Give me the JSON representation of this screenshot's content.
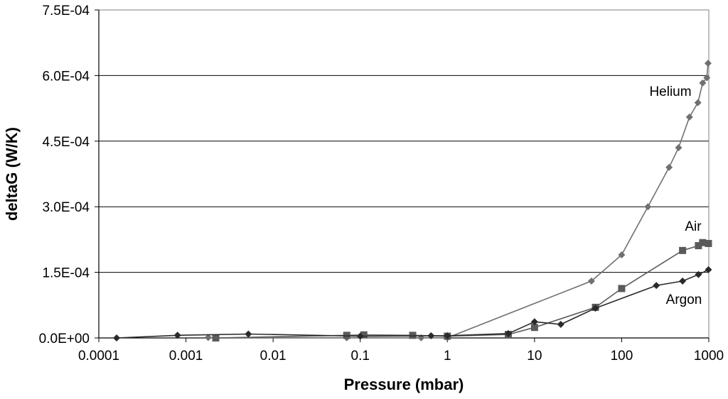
{
  "chart_data": {
    "type": "line",
    "title": "",
    "xlabel": "Pressure (mbar)",
    "ylabel": "deltaG (W/K)",
    "x_scale": "log",
    "xlim": [
      0.0001,
      1000
    ],
    "ylim": [
      0,
      0.00075
    ],
    "x_ticks": [
      {
        "value": 0.0001,
        "label": "0.0001"
      },
      {
        "value": 0.001,
        "label": "0.001"
      },
      {
        "value": 0.01,
        "label": "0.01"
      },
      {
        "value": 0.1,
        "label": "0.1"
      },
      {
        "value": 1,
        "label": "1"
      },
      {
        "value": 10,
        "label": "10"
      },
      {
        "value": 100,
        "label": "100"
      },
      {
        "value": 1000,
        "label": "1000"
      }
    ],
    "y_ticks": [
      {
        "value": 0,
        "label": "0.0E+00"
      },
      {
        "value": 0.00015,
        "label": "1.5E-04"
      },
      {
        "value": 0.0003,
        "label": "3.0E-04"
      },
      {
        "value": 0.00045,
        "label": "4.5E-04"
      },
      {
        "value": 0.0006,
        "label": "6.0E-04"
      },
      {
        "value": 0.00075,
        "label": "7.5E-04"
      }
    ],
    "horizontal_gridlines": true,
    "legend": "none (inline series labels)",
    "series": [
      {
        "name": "Helium",
        "marker": "diamond",
        "color": "#707070",
        "points": [
          [
            0.0018,
            1e-06
          ],
          [
            0.0022,
            0.0
          ],
          [
            0.07,
            5e-07
          ],
          [
            0.5,
            5e-07
          ],
          [
            1.0,
            5e-07
          ],
          [
            45,
            0.00013
          ],
          [
            100,
            0.00019
          ],
          [
            200,
            0.0003
          ],
          [
            350,
            0.00039
          ],
          [
            450,
            0.000435
          ],
          [
            600,
            0.000505
          ],
          [
            750,
            0.000538
          ],
          [
            850,
            0.000583
          ],
          [
            950,
            0.000595
          ],
          [
            980,
            0.000628
          ]
        ]
      },
      {
        "name": "Air",
        "marker": "square",
        "color": "#5a5a5a",
        "points": [
          [
            0.0022,
            0.0
          ],
          [
            0.07,
            6e-06
          ],
          [
            0.11,
            7e-06
          ],
          [
            0.4,
            6e-06
          ],
          [
            1.0,
            4e-06
          ],
          [
            5,
            8e-06
          ],
          [
            10,
            2.4e-05
          ],
          [
            50,
            7e-05
          ],
          [
            100,
            0.000113
          ],
          [
            500,
            0.0002
          ],
          [
            760,
            0.000211
          ],
          [
            850,
            0.000218
          ],
          [
            990,
            0.000216
          ]
        ]
      },
      {
        "name": "Argon",
        "marker": "diamond",
        "color": "#2a2a2a",
        "points": [
          [
            0.00016,
            0.0
          ],
          [
            0.0008,
            6e-06
          ],
          [
            0.0052,
            9e-06
          ],
          [
            0.1,
            4e-06
          ],
          [
            0.65,
            5e-06
          ],
          [
            1.0,
            5e-06
          ],
          [
            5,
            1e-05
          ],
          [
            10,
            3.7e-05
          ],
          [
            20,
            3.1e-05
          ],
          [
            50,
            6.8e-05
          ],
          [
            250,
            0.00012
          ],
          [
            500,
            0.00013
          ],
          [
            760,
            0.000145
          ],
          [
            990,
            0.000156
          ]
        ]
      }
    ],
    "series_labels": [
      {
        "text": "Helium",
        "series": "Helium"
      },
      {
        "text": "Air",
        "series": "Air"
      },
      {
        "text": "Argon",
        "series": "Argon"
      }
    ]
  }
}
